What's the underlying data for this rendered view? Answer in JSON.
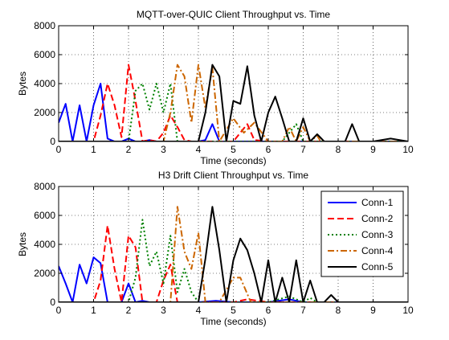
{
  "chart_data": [
    {
      "type": "line",
      "title": "MQTT-over-QUIC Client Throughput vs. Time",
      "xlabel": "Time (seconds)",
      "ylabel": "Bytes",
      "xlim": [
        0,
        10
      ],
      "ylim": [
        0,
        8000
      ],
      "xticks": [
        "0",
        "1",
        "2",
        "3",
        "4",
        "5",
        "6",
        "7",
        "8",
        "9",
        "10"
      ],
      "yticks": [
        "0",
        "2000",
        "4000",
        "6000",
        "8000"
      ],
      "grid": true,
      "legend": null,
      "series": [
        {
          "name": "Conn-1",
          "color": "#0000ff",
          "dash": "solid",
          "x": [
            0,
            0.2,
            0.4,
            0.6,
            0.8,
            1.0,
            1.2,
            1.4,
            1.6,
            1.8,
            2.0,
            2.2,
            2.4,
            2.6,
            2.8,
            3.0,
            3.5,
            4.0,
            4.2,
            4.4,
            4.6,
            4.8,
            5.0,
            5.5,
            6.0,
            6.5,
            7.0,
            7.5,
            8.0,
            9.0,
            10.0
          ],
          "y": [
            1300,
            2600,
            0,
            2500,
            0,
            2500,
            4000,
            200,
            0,
            0,
            200,
            0,
            0,
            100,
            0,
            0,
            0,
            0,
            100,
            1200,
            0,
            0,
            0,
            0,
            0,
            0,
            0,
            0,
            0,
            0,
            0
          ]
        },
        {
          "name": "Conn-2",
          "color": "#ff0000",
          "dash": "dashed",
          "x": [
            0,
            1.0,
            1.2,
            1.4,
            1.6,
            1.8,
            2.0,
            2.2,
            2.4,
            2.6,
            2.8,
            3.0,
            3.2,
            3.4,
            3.6,
            3.8,
            4.0,
            4.2,
            4.5,
            5.0,
            5.4,
            5.6,
            6.0,
            6.5,
            7.0,
            10.0
          ],
          "y": [
            0,
            0,
            1800,
            4000,
            2500,
            300,
            5300,
            2800,
            0,
            100,
            0,
            600,
            1800,
            1000,
            100,
            0,
            0,
            0,
            0,
            0,
            1200,
            100,
            0,
            0,
            0,
            0
          ]
        },
        {
          "name": "Conn-3",
          "color": "#008000",
          "dash": "dotted",
          "x": [
            0,
            2.0,
            2.2,
            2.4,
            2.6,
            2.8,
            3.0,
            3.2,
            3.4,
            3.6,
            4.0,
            4.5,
            5.0,
            5.6,
            6.0,
            6.4,
            6.8,
            7.0,
            7.5,
            10.0
          ],
          "y": [
            0,
            0,
            3500,
            4000,
            2200,
            4000,
            2000,
            4000,
            0,
            0,
            0,
            0,
            0,
            0,
            0,
            0,
            1200,
            0,
            0,
            0
          ]
        },
        {
          "name": "Conn-4",
          "color": "#cc6600",
          "dash": "dashdot",
          "x": [
            0,
            3.0,
            3.2,
            3.4,
            3.6,
            3.8,
            4.0,
            4.2,
            4.4,
            4.6,
            5.0,
            5.3,
            5.6,
            6.0,
            6.4,
            6.6,
            6.8,
            7.0,
            7.2,
            7.4,
            7.5,
            8.0,
            10.0
          ],
          "y": [
            0,
            0,
            2000,
            5300,
            4500,
            1300,
            5300,
            2300,
            5100,
            0,
            1600,
            600,
            1300,
            0,
            0,
            1000,
            0,
            1000,
            0,
            400,
            0,
            0,
            0
          ]
        },
        {
          "name": "Conn-5",
          "color": "#000000",
          "dash": "solid",
          "x": [
            0,
            3.9,
            4.0,
            4.2,
            4.4,
            4.6,
            4.8,
            5.0,
            5.2,
            5.4,
            5.6,
            5.8,
            6.0,
            6.2,
            6.4,
            6.6,
            6.8,
            7.0,
            7.2,
            7.4,
            7.6,
            7.8,
            8.0,
            8.2,
            8.4,
            8.6,
            9.0,
            9.5,
            10.0
          ],
          "y": [
            0,
            0,
            0,
            2000,
            5300,
            4500,
            0,
            2800,
            2600,
            5200,
            1800,
            0,
            2000,
            3100,
            1600,
            0,
            0,
            1600,
            0,
            500,
            0,
            0,
            0,
            0,
            1200,
            0,
            0,
            200,
            0
          ]
        }
      ]
    },
    {
      "type": "line",
      "title": "H3 Drift Client Throughput vs. Time",
      "xlabel": "Time (seconds)",
      "ylabel": "Bytes",
      "xlim": [
        0,
        10
      ],
      "ylim": [
        0,
        8000
      ],
      "xticks": [
        "0",
        "1",
        "2",
        "3",
        "4",
        "5",
        "6",
        "7",
        "8",
        "9",
        "10"
      ],
      "yticks": [
        "0",
        "2000",
        "4000",
        "6000",
        "8000"
      ],
      "grid": true,
      "legend": "top-right",
      "series": [
        {
          "name": "Conn-1",
          "color": "#0000ff",
          "dash": "solid",
          "x": [
            0,
            0.2,
            0.4,
            0.6,
            0.8,
            1.0,
            1.2,
            1.4,
            1.6,
            1.8,
            2.0,
            2.2,
            2.4,
            2.6,
            3.0,
            4.0,
            4.5,
            5.0,
            5.5,
            6.0,
            6.6,
            7.0,
            8.0,
            10.0
          ],
          "y": [
            2500,
            1300,
            0,
            2600,
            1300,
            3100,
            2700,
            0,
            0,
            0,
            1300,
            0,
            100,
            0,
            0,
            0,
            100,
            0,
            0,
            0,
            200,
            0,
            0,
            0
          ]
        },
        {
          "name": "Conn-2",
          "color": "#ff0000",
          "dash": "dashed",
          "x": [
            0,
            1.0,
            1.2,
            1.4,
            1.6,
            1.8,
            2.0,
            2.2,
            2.4,
            2.6,
            2.8,
            3.0,
            3.2,
            3.4,
            3.6,
            4.0,
            5.0,
            5.4,
            6.0,
            7.0,
            10.0
          ],
          "y": [
            0,
            0,
            1500,
            5300,
            2300,
            0,
            4600,
            3800,
            0,
            0,
            0,
            1500,
            2600,
            0,
            0,
            0,
            0,
            200,
            0,
            0,
            0
          ]
        },
        {
          "name": "Conn-3",
          "color": "#008000",
          "dash": "dotted",
          "x": [
            0,
            2.0,
            2.2,
            2.4,
            2.6,
            2.8,
            3.0,
            3.2,
            3.4,
            3.6,
            3.8,
            4.0,
            5.0,
            6.0,
            6.6,
            7.0,
            7.2,
            7.4,
            8.0,
            10.0
          ],
          "y": [
            0,
            0,
            1700,
            5700,
            2500,
            3500,
            1300,
            4600,
            700,
            2300,
            700,
            0,
            0,
            0,
            400,
            0,
            300,
            0,
            0,
            0
          ]
        },
        {
          "name": "Conn-4",
          "color": "#cc6600",
          "dash": "dashdot",
          "x": [
            0,
            3.0,
            3.2,
            3.4,
            3.6,
            3.8,
            4.0,
            4.2,
            4.4,
            4.6,
            5.0,
            5.2,
            5.5,
            6.0,
            7.0,
            10.0
          ],
          "y": [
            0,
            0,
            0,
            6600,
            3500,
            2300,
            4800,
            0,
            0,
            0,
            1700,
            1700,
            0,
            0,
            0,
            0
          ]
        },
        {
          "name": "Conn-5",
          "color": "#000000",
          "dash": "solid",
          "x": [
            0,
            3.9,
            4.0,
            4.2,
            4.4,
            4.6,
            4.8,
            5.0,
            5.2,
            5.4,
            5.6,
            5.8,
            6.0,
            6.2,
            6.4,
            6.6,
            6.8,
            7.0,
            7.2,
            7.4,
            7.6,
            7.8,
            8.0,
            8.4,
            9.0,
            10.0
          ],
          "y": [
            0,
            0,
            0,
            3000,
            6600,
            3600,
            0,
            2900,
            4400,
            3600,
            2000,
            0,
            2900,
            0,
            1700,
            0,
            2900,
            0,
            1500,
            0,
            0,
            500,
            0,
            0,
            0,
            0
          ]
        }
      ]
    }
  ]
}
